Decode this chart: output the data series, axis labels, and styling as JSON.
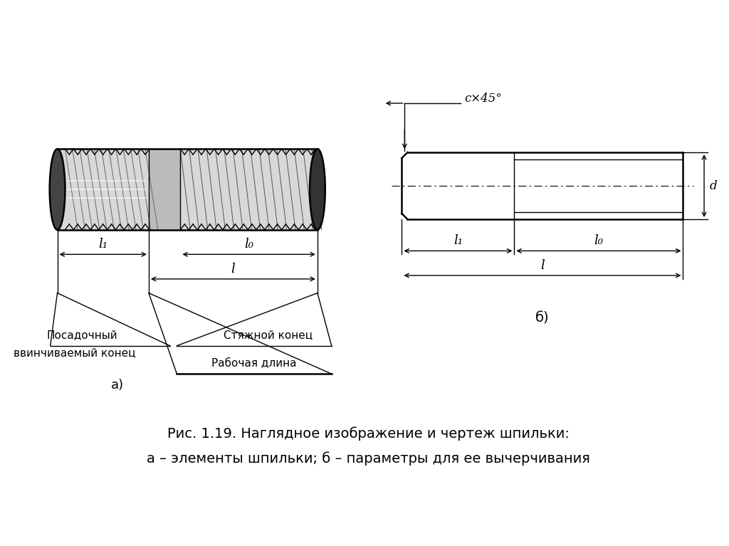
{
  "bg_color": "#ffffff",
  "line_color": "#000000",
  "figure_caption_line1": "Рис. 1.19. Наглядное изображение и чертеж шпильки:",
  "figure_caption_line2": "а – элементы шпильки; б – параметры для ее вычерчивания",
  "label_a": "а)",
  "label_b": "б)",
  "label_c45": "с×45°",
  "label_l1": "l₁",
  "label_l0": "l₀",
  "label_l": "l",
  "label_d": "d",
  "label_posadochny": "Посадочный",
  "label_vvinchivaemy": "ввинчиваемый конец",
  "label_styazhnoj": "Стяжной конец",
  "label_rabochaya": "Рабочая длина",
  "font_size_caption": 13,
  "font_size_labels": 11,
  "font_size_small": 10
}
